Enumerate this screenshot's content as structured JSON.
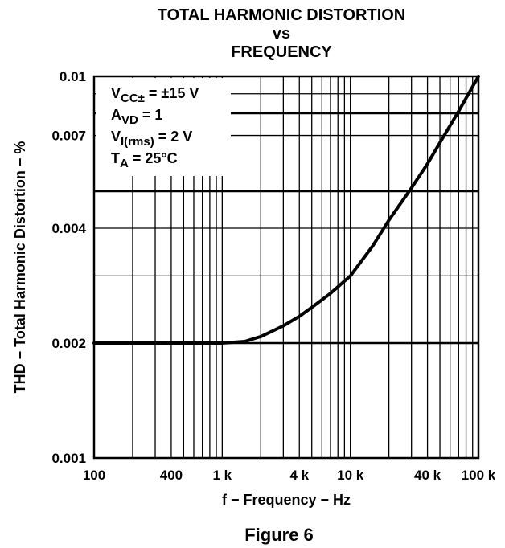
{
  "chart_data": {
    "type": "line",
    "title": [
      "TOTAL HARMONIC DISTORTION",
      "vs",
      "FREQUENCY"
    ],
    "xlabel": "f − Frequency − Hz",
    "ylabel": "THD − Total Harmonic Distortion − %",
    "x_scale": "log",
    "y_scale": "log",
    "xlim": [
      100,
      100000
    ],
    "ylim": [
      0.001,
      0.01
    ],
    "grid": true,
    "x_ticks": [
      {
        "value": 100,
        "label": "100"
      },
      {
        "value": 400,
        "label": "400"
      },
      {
        "value": 1000,
        "label": "1 k"
      },
      {
        "value": 4000,
        "label": "4 k"
      },
      {
        "value": 10000,
        "label": "10 k"
      },
      {
        "value": 40000,
        "label": "40 k"
      },
      {
        "value": 100000,
        "label": "100 k"
      }
    ],
    "y_ticks": [
      {
        "value": 0.001,
        "label": "0.001"
      },
      {
        "value": 0.002,
        "label": "0.002"
      },
      {
        "value": 0.004,
        "label": "0.004"
      },
      {
        "value": 0.007,
        "label": "0.007"
      },
      {
        "value": 0.01,
        "label": "0.01"
      }
    ],
    "y_grid_values": [
      0.002,
      0.003,
      0.004,
      0.005,
      0.007,
      0.008,
      0.009
    ],
    "series": [
      {
        "x": [
          100,
          200,
          400,
          700,
          1000,
          1500,
          2000,
          3000,
          4000,
          5000,
          7000,
          10000,
          15000,
          20000,
          30000,
          40000,
          50000,
          70000,
          100000
        ],
        "y": [
          0.002,
          0.002,
          0.002,
          0.002,
          0.002,
          0.00202,
          0.00208,
          0.00222,
          0.00235,
          0.00248,
          0.0027,
          0.003,
          0.0036,
          0.0042,
          0.0051,
          0.0059,
          0.0067,
          0.0081,
          0.01
        ]
      }
    ],
    "conditions": [
      {
        "main": "V",
        "sub": "CC±",
        "rest": "  =  ±15 V"
      },
      {
        "main": "A",
        "sub": "VD",
        "rest": " = 1"
      },
      {
        "main": "V",
        "sub": "I(rms)",
        "rest": " = 2 V"
      },
      {
        "main": "T",
        "sub": "A",
        "rest": " = 25°C"
      }
    ],
    "caption": "Figure 6"
  },
  "colors": {
    "line": "#000000",
    "grid": "#000000",
    "background": "#ffffff"
  }
}
